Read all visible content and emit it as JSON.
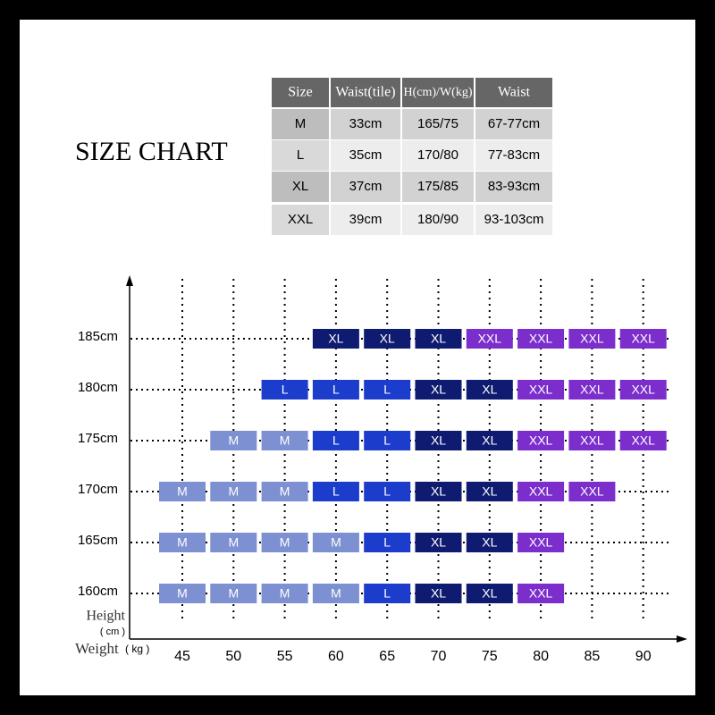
{
  "title": "SIZE CHART",
  "table": {
    "header": [
      "Size",
      "Waist(tile)",
      "H(cm)/W(kg)",
      "Waist"
    ],
    "rows": [
      [
        "M",
        "33cm",
        "165/75",
        "67-77cm"
      ],
      [
        "L",
        "35cm",
        "170/80",
        "77-83cm"
      ],
      [
        "XL",
        "37cm",
        "175/85",
        "83-93cm"
      ],
      [
        "XXL",
        "39cm",
        "180/90",
        "93-103cm"
      ]
    ]
  },
  "grid": {
    "y_label": "Height",
    "y_unit": "( cm )",
    "x_label": "Weight",
    "x_unit": "( kg )",
    "heights": [
      "185cm",
      "180cm",
      "175cm",
      "170cm",
      "165cm",
      "160cm"
    ],
    "weights": [
      "45",
      "50",
      "55",
      "60",
      "65",
      "70",
      "75",
      "80",
      "85",
      "90"
    ],
    "colors": {
      "M": "#7d90d2",
      "L": "#1c3ccc",
      "XL": "#0e1b70",
      "XXL": "#7b2ecb"
    },
    "cells": [
      [
        null,
        null,
        null,
        "XL",
        "XL",
        "XL",
        "XXL",
        "XXL",
        "XXL",
        "XXL"
      ],
      [
        null,
        null,
        "L",
        "L",
        "L",
        "XL",
        "XL",
        "XXL",
        "XXL",
        "XXL"
      ],
      [
        null,
        "M",
        "M",
        "L",
        "L",
        "XL",
        "XL",
        "XXL",
        "XXL",
        "XXL"
      ],
      [
        "M",
        "M",
        "M",
        "L",
        "L",
        "XL",
        "XL",
        "XXL",
        "XXL",
        null
      ],
      [
        "M",
        "M",
        "M",
        "M",
        "L",
        "XL",
        "XL",
        "XXL",
        null,
        null
      ],
      [
        "M",
        "M",
        "M",
        "M",
        "L",
        "XL",
        "XL",
        "XXL",
        null,
        null
      ]
    ]
  }
}
